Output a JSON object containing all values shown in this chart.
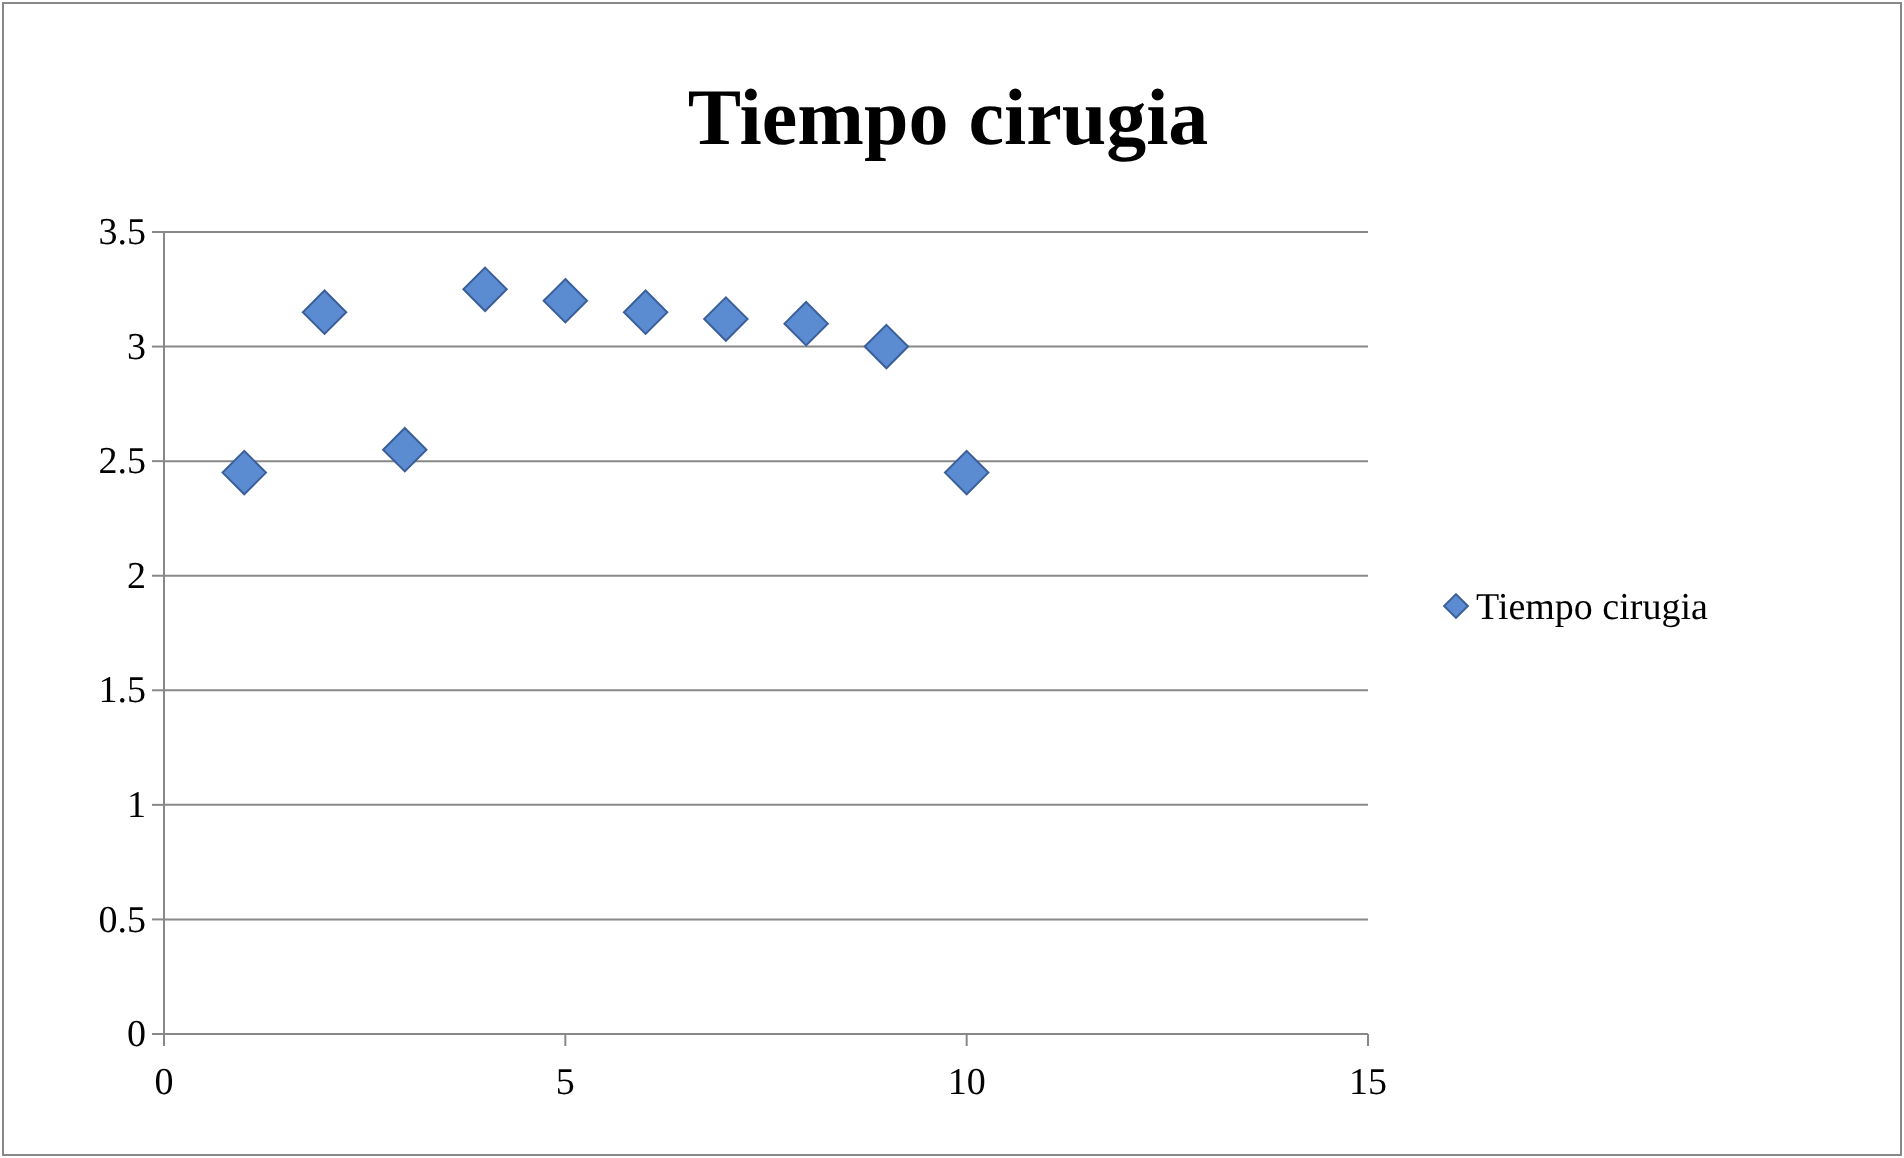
{
  "chart_data": {
    "type": "scatter",
    "title": "Tiempo cirugia",
    "x": [
      1,
      2,
      3,
      4,
      5,
      6,
      7,
      8,
      9,
      10
    ],
    "series": [
      {
        "name": "Tiempo cirugia",
        "color": "#5b8bd0",
        "values": [
          2.45,
          3.15,
          2.55,
          3.25,
          3.2,
          3.15,
          3.12,
          3.1,
          3.0,
          2.45
        ]
      }
    ],
    "xlim": [
      0,
      15
    ],
    "xticks": [
      0,
      5,
      10,
      15
    ],
    "ylim": [
      0,
      3.5
    ],
    "yticks": [
      0,
      0.5,
      1,
      1.5,
      2,
      2.5,
      3,
      3.5
    ],
    "grid": "y",
    "legend": "right",
    "marker": "diamond"
  }
}
